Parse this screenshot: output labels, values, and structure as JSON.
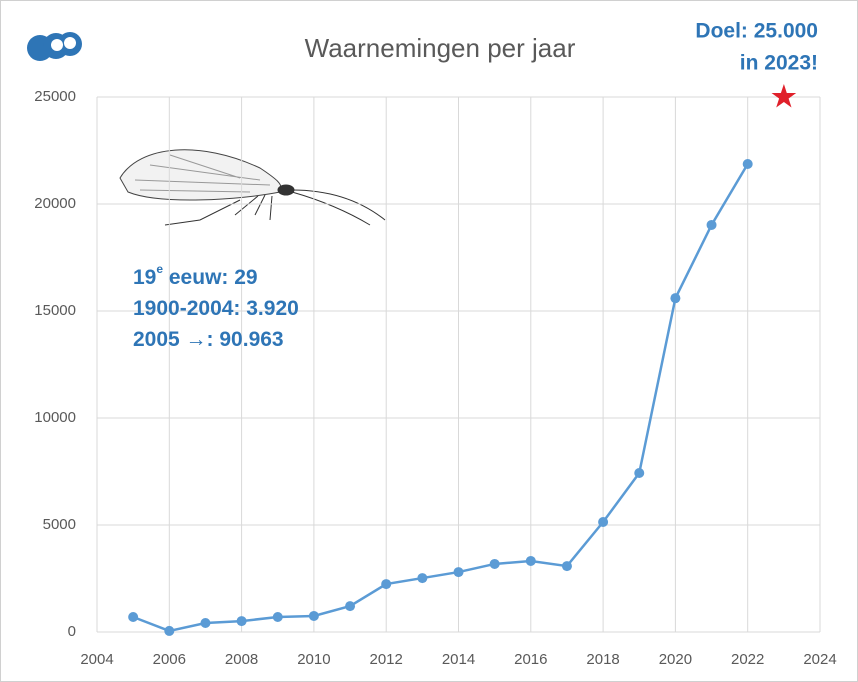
{
  "chart_data": {
    "type": "line",
    "title": "Waarnemingen per jaar",
    "x": [
      2005,
      2006,
      2007,
      2008,
      2009,
      2010,
      2011,
      2012,
      2013,
      2014,
      2015,
      2016,
      2017,
      2018,
      2019,
      2020,
      2021,
      2022
    ],
    "series": [
      {
        "color": "#5b9bd5",
        "values": [
          700,
          50,
          420,
          510,
          700,
          750,
          1210,
          2240,
          2520,
          2800,
          3180,
          3320,
          3080,
          5140,
          7430,
          15600,
          19020,
          21870
        ]
      }
    ],
    "goal": {
      "x": 2023,
      "y": 25000,
      "color": "#e0202a",
      "label_lines": [
        "Doel: 25.000",
        "in 2023!"
      ]
    },
    "notes": [
      {
        "base": "19",
        "sup": "e",
        "rest": " eeuw: 29"
      },
      {
        "base": "1900-2004: 3.920"
      },
      {
        "base": "2005 →: 90.963"
      }
    ],
    "xlim": [
      2004,
      2024
    ],
    "xticks": [
      2004,
      2006,
      2008,
      2010,
      2012,
      2014,
      2016,
      2018,
      2020,
      2022,
      2024
    ],
    "ylim": [
      0,
      25000
    ],
    "yticks": [
      0,
      5000,
      10000,
      15000,
      20000,
      25000
    ],
    "grid": true
  }
}
